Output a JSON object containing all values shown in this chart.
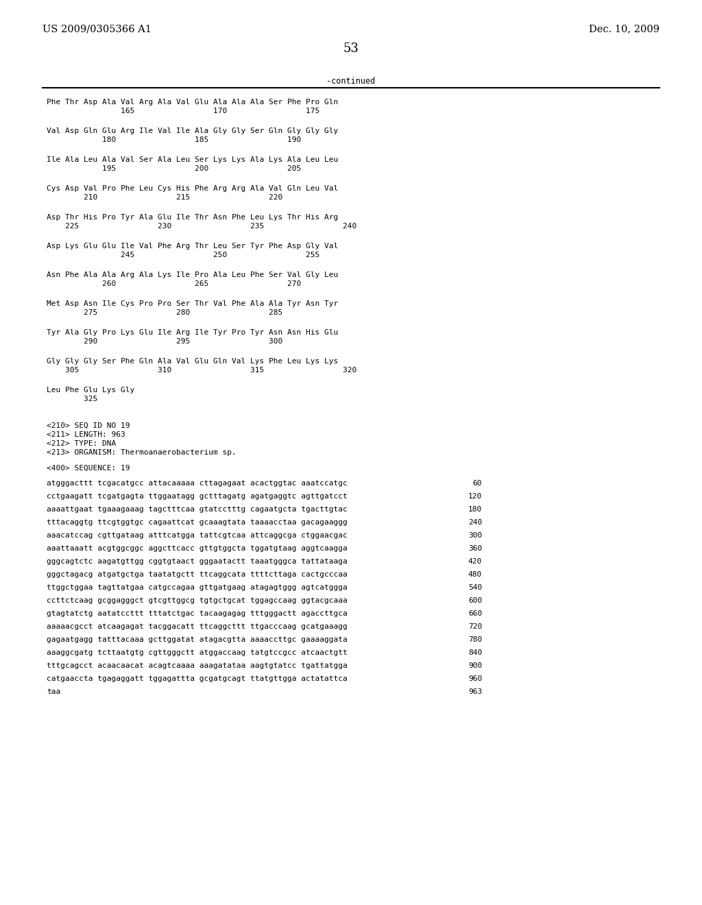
{
  "header_left": "US 2009/0305366 A1",
  "header_right": "Dec. 10, 2009",
  "page_number": "53",
  "continued_label": "-continued",
  "background_color": "#ffffff",
  "text_color": "#000000",
  "amino_acid_blocks": [
    [
      "Phe Thr Asp Ala Val Arg Ala Val Glu Ala Ala Ala Ser Phe Pro Gln",
      "                165                 170                 175"
    ],
    [
      "Val Asp Gln Glu Arg Ile Val Ile Ala Gly Gly Ser Gln Gly Gly Gly",
      "            180                 185                 190"
    ],
    [
      "Ile Ala Leu Ala Val Ser Ala Leu Ser Lys Lys Ala Lys Ala Leu Leu",
      "            195                 200                 205"
    ],
    [
      "Cys Asp Val Pro Phe Leu Cys His Phe Arg Arg Ala Val Gln Leu Val",
      "        210                 215                 220"
    ],
    [
      "Asp Thr His Pro Tyr Ala Glu Ile Thr Asn Phe Leu Lys Thr His Arg",
      "    225                 230                 235                 240"
    ],
    [
      "Asp Lys Glu Glu Ile Val Phe Arg Thr Leu Ser Tyr Phe Asp Gly Val",
      "                245                 250                 255"
    ],
    [
      "Asn Phe Ala Ala Arg Ala Lys Ile Pro Ala Leu Phe Ser Val Gly Leu",
      "            260                 265                 270"
    ],
    [
      "Met Asp Asn Ile Cys Pro Pro Ser Thr Val Phe Ala Ala Tyr Asn Tyr",
      "        275                 280                 285"
    ],
    [
      "Tyr Ala Gly Pro Lys Glu Ile Arg Ile Tyr Pro Tyr Asn Asn His Glu",
      "        290                 295                 300"
    ],
    [
      "Gly Gly Gly Ser Phe Gln Ala Val Glu Gln Val Lys Phe Leu Lys Lys",
      "    305                 310                 315                 320"
    ],
    [
      "Leu Phe Glu Lys Gly",
      "        325"
    ]
  ],
  "seq_info_lines": [
    "<210> SEQ ID NO 19",
    "<211> LENGTH: 963",
    "<212> TYPE: DNA",
    "<213> ORGANISM: Thermoanaerobacterium sp."
  ],
  "seq400_label": "<400> SEQUENCE: 19",
  "dna_lines": [
    [
      "atgggacttt tcgacatgcc attacaaaaa cttagagaat acactggtac aaatccatgc",
      "60"
    ],
    [
      "cctgaagatt tcgatgagta ttggaatagg gctttagatg agatgaggtc agttgatcct",
      "120"
    ],
    [
      "aaaattgaat tgaaagaaag tagctttcaa gtatcctttg cagaatgcta tgacttgtac",
      "180"
    ],
    [
      "tttacaggtg ttcgtggtgc cagaattcat gcaaagtata taaaacctaa gacagaaggg",
      "240"
    ],
    [
      "aaacatccag cgttgataag atttcatgga tattcgtcaa attcaggcga ctggaacgac",
      "300"
    ],
    [
      "aaattaaatt acgtggcggc aggcttcacc gttgtggcta tggatgtaag aggtcaagga",
      "360"
    ],
    [
      "gggcagtctc aagatgttgg cggtgtaact gggaatactt taaatgggca tattataaga",
      "420"
    ],
    [
      "gggctagacg atgatgctga taatatgctt ttcaggcata ttttcttaga cactgcccaa",
      "480"
    ],
    [
      "ttggctggaa tagttatgaa catgccagaa gttgatgaag atagagtggg agtcatggga",
      "540"
    ],
    [
      "ccttctcaag gcggagggct gtcgttggcg tgtgctgcat tggagccaag ggtacgcaaa",
      "600"
    ],
    [
      "gtagtatctg aatatccttt tttatctgac tacaagagag tttgggactt agaccttgca",
      "660"
    ],
    [
      "aaaaacgcct atcaagagat tacggacatt ttcaggcttt ttgacccaag gcatgaaagg",
      "720"
    ],
    [
      "gagaatgagg tatttacaaa gcttggatat atagacgtta aaaaccttgc gaaaaggata",
      "780"
    ],
    [
      "aaaggcgatg tcttaatgtg cgttgggctt atggaccaag tatgtccgcc atcaactgtt",
      "840"
    ],
    [
      "tttgcagcct acaacaacat acagtcaaaa aaagatataa aagtgtatcc tgattatgga",
      "900"
    ],
    [
      "catgaaccta tgagaggatt tggagattta gcgatgcagt ttatgttgga actatattca",
      "960"
    ],
    [
      "taa",
      "963"
    ]
  ]
}
